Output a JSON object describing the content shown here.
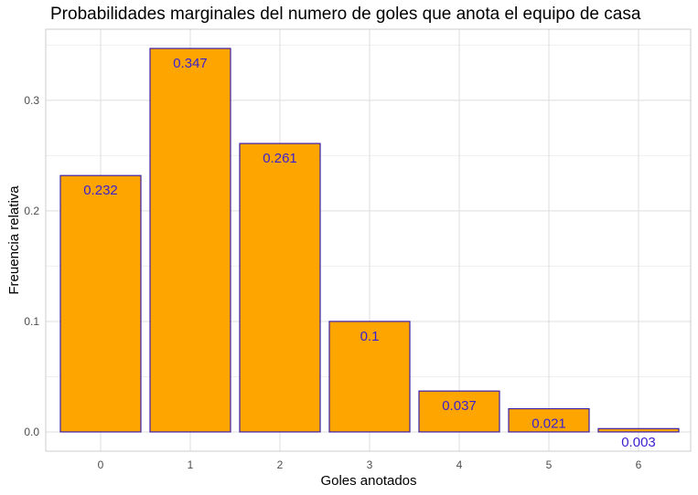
{
  "chart_data": {
    "type": "bar",
    "title": "Probabilidades marginales del numero de goles que anota el equipo de casa",
    "xlabel": "Goles anotados",
    "ylabel": "Freuencia relativa",
    "categories": [
      "0",
      "1",
      "2",
      "3",
      "4",
      "5",
      "6"
    ],
    "values": [
      0.232,
      0.347,
      0.261,
      0.1,
      0.037,
      0.021,
      0.003
    ],
    "data_labels": [
      "0.232",
      "0.347",
      "0.261",
      "0.1",
      "0.037",
      "0.021",
      "0.003"
    ],
    "yticks": [
      0.0,
      0.1,
      0.2,
      0.3
    ],
    "ytick_labels": [
      "0.0",
      "0.1",
      "0.2",
      "0.3"
    ],
    "ylim": [
      -0.0174,
      0.3644
    ],
    "grid": true,
    "legend": "none",
    "colors": {
      "bar_fill": "#FFA500",
      "bar_outline": "#3D1FA8",
      "label_text": "#3A1FD0",
      "grid_major": "#DEDEDE",
      "grid_minor": "#EFEFEF",
      "panel_border": "#CCCCCC"
    }
  }
}
